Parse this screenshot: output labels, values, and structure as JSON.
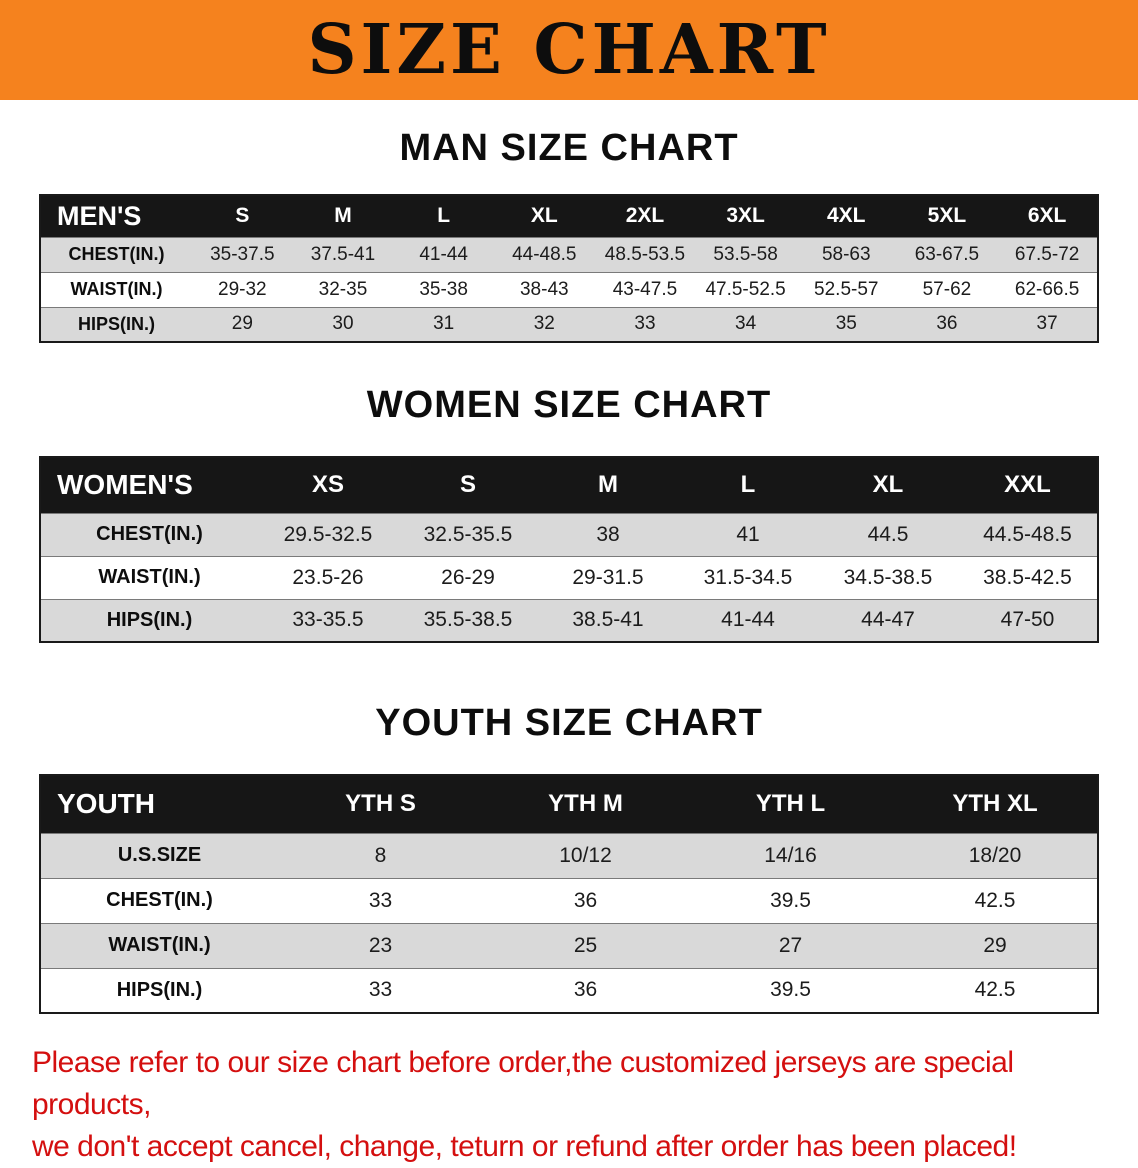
{
  "banner": {
    "title": "SIZE CHART",
    "bg_color": "#F5821E",
    "text_color": "#0d0d0d"
  },
  "sections": [
    {
      "id": "men",
      "heading": "MAN SIZE CHART",
      "table": {
        "title": "MEN'S",
        "columns": [
          "S",
          "M",
          "L",
          "XL",
          "2XL",
          "3XL",
          "4XL",
          "5XL",
          "6XL"
        ],
        "rows": [
          {
            "label": "CHEST(IN.)",
            "values": [
              "35-37.5",
              "37.5-41",
              "41-44",
              "44-48.5",
              "48.5-53.5",
              "53.5-58",
              "58-63",
              "63-67.5",
              "67.5-72"
            ]
          },
          {
            "label": "WAIST(IN.)",
            "values": [
              "29-32",
              "32-35",
              "35-38",
              "38-43",
              "43-47.5",
              "47.5-52.5",
              "52.5-57",
              "57-62",
              "62-66.5"
            ]
          },
          {
            "label": "HIPS(IN.)",
            "values": [
              "29",
              "30",
              "31",
              "32",
              "33",
              "34",
              "35",
              "36",
              "37"
            ]
          }
        ]
      }
    },
    {
      "id": "women",
      "heading": "WOMEN SIZE CHART",
      "table": {
        "title": "WOMEN'S",
        "columns": [
          "XS",
          "S",
          "M",
          "L",
          "XL",
          "XXL"
        ],
        "rows": [
          {
            "label": "CHEST(IN.)",
            "values": [
              "29.5-32.5",
              "32.5-35.5",
              "38",
              "41",
              "44.5",
              "44.5-48.5"
            ]
          },
          {
            "label": "WAIST(IN.)",
            "values": [
              "23.5-26",
              "26-29",
              "29-31.5",
              "31.5-34.5",
              "34.5-38.5",
              "38.5-42.5"
            ]
          },
          {
            "label": "HIPS(IN.)",
            "values": [
              "33-35.5",
              "35.5-38.5",
              "38.5-41",
              "41-44",
              "44-47",
              "47-50"
            ]
          }
        ]
      }
    },
    {
      "id": "youth",
      "heading": "YOUTH SIZE CHART",
      "table": {
        "title": "YOUTH",
        "columns": [
          "YTH S",
          "YTH M",
          "YTH L",
          "YTH XL"
        ],
        "rows": [
          {
            "label": "U.S.SIZE",
            "values": [
              "8",
              "10/12",
              "14/16",
              "18/20"
            ]
          },
          {
            "label": "CHEST(IN.)",
            "values": [
              "33",
              "36",
              "39.5",
              "42.5"
            ]
          },
          {
            "label": "WAIST(IN.)",
            "values": [
              "23",
              "25",
              "27",
              "29"
            ]
          },
          {
            "label": "HIPS(IN.)",
            "values": [
              "33",
              "36",
              "39.5",
              "42.5"
            ]
          }
        ]
      }
    }
  ],
  "disclaimer": {
    "color": "#d40f0f",
    "line1": "Please refer to our size chart before order,the customized jerseys are special products,",
    "line2": "we don't accept cancel, change, teturn or refund after order has been placed!"
  }
}
